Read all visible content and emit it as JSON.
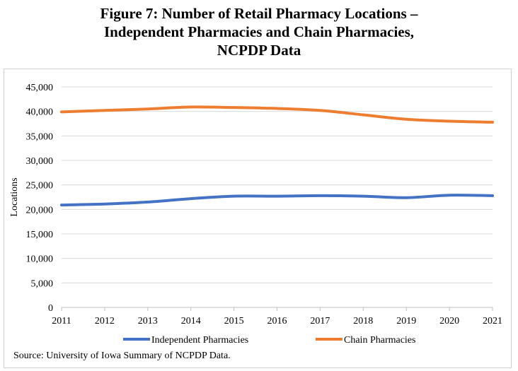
{
  "title_lines": [
    "Figure 7: Number of Retail Pharmacy Locations –",
    "Independent Pharmacies and Chain Pharmacies,",
    "NCPDP Data"
  ],
  "source": "Source: University of Iowa Summary of NCPDP Data.",
  "chart_data": {
    "type": "line",
    "title": "Figure 7: Number of Retail Pharmacy Locations – Independent Pharmacies and Chain Pharmacies, NCPDP Data",
    "xlabel": "",
    "ylabel": "Locations",
    "x": [
      "2011",
      "2012",
      "2013",
      "2014",
      "2015",
      "2016",
      "2017",
      "2018",
      "2019",
      "2020",
      "2021"
    ],
    "ylim": [
      0,
      45000
    ],
    "yticks": [
      0,
      5000,
      10000,
      15000,
      20000,
      25000,
      30000,
      35000,
      40000,
      45000
    ],
    "ytick_labels": [
      "0",
      "5,000",
      "10,000",
      "15,000",
      "20,000",
      "25,000",
      "30,000",
      "35,000",
      "40,000",
      "45,000"
    ],
    "grid": true,
    "legend_position": "bottom",
    "series": [
      {
        "name": "Independent Pharmacies",
        "color": "#4472c4",
        "values": [
          20900,
          21100,
          21500,
          22200,
          22700,
          22700,
          22800,
          22700,
          22400,
          22900,
          22800
        ]
      },
      {
        "name": "Chain Pharmacies",
        "color": "#ed7d31",
        "values": [
          39900,
          40200,
          40500,
          40900,
          40800,
          40600,
          40200,
          39300,
          38400,
          38000,
          37800
        ]
      }
    ]
  }
}
